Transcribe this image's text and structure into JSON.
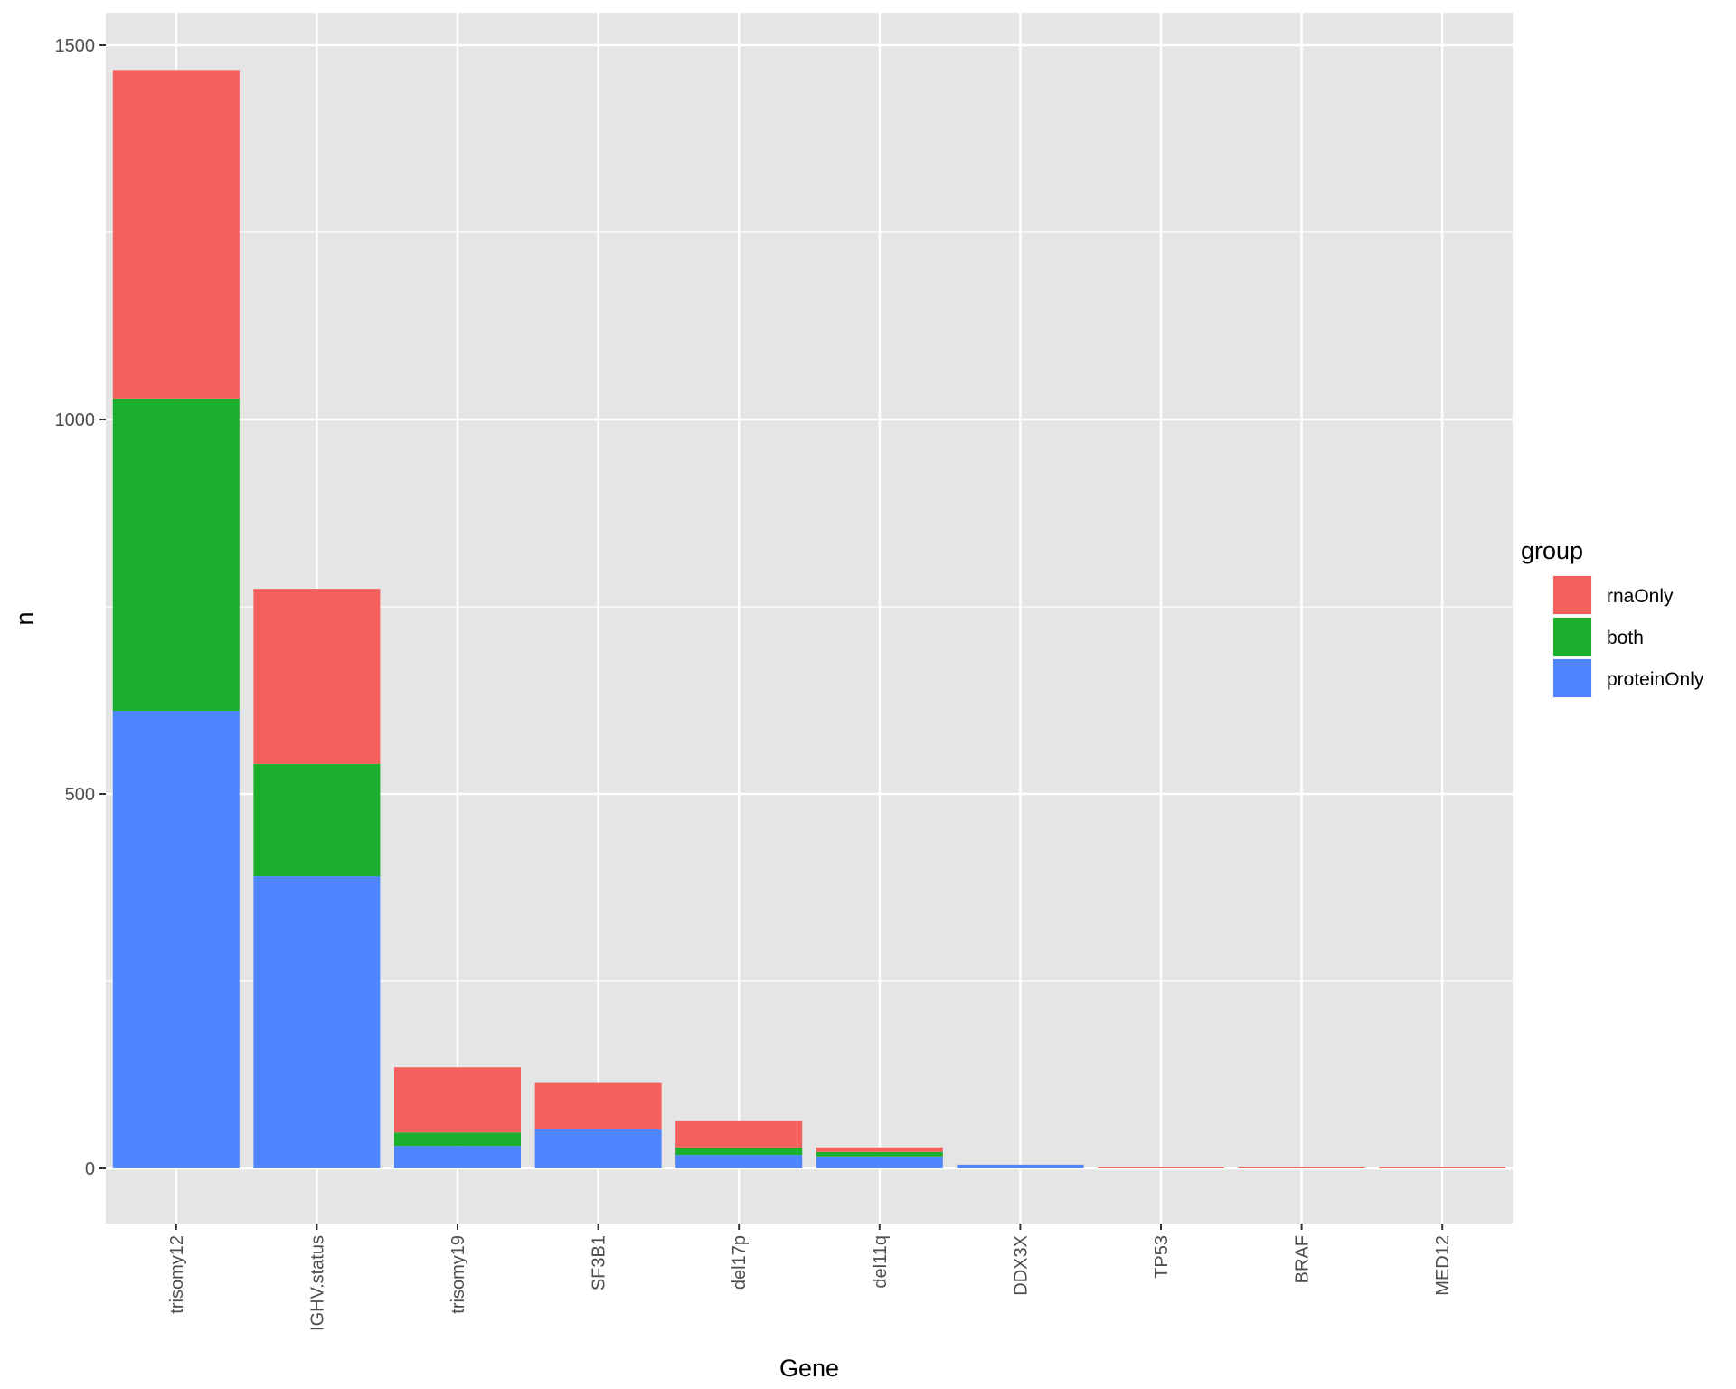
{
  "chart_data": {
    "type": "bar",
    "stacked": true,
    "title": "",
    "xlabel": "Gene",
    "ylabel": "n",
    "ylim": [
      -70,
      1540
    ],
    "yticks": [
      0,
      500,
      1000,
      1500
    ],
    "categories": [
      "trisomy12",
      "IGHV.status",
      "trisomy19",
      "SF3B1",
      "del17p",
      "del11q",
      "DDX3X",
      "TP53",
      "BRAF",
      "MED12"
    ],
    "series": [
      {
        "name": "proteinOnly",
        "color": "#4f86ff",
        "values": [
          611,
          390,
          30,
          52,
          18,
          16,
          5,
          0,
          0,
          0
        ]
      },
      {
        "name": "both",
        "color": "#1aaf2c",
        "values": [
          417,
          150,
          18,
          0,
          10,
          6,
          0,
          0,
          0,
          0
        ]
      },
      {
        "name": "rnaOnly",
        "color": "#f4615c",
        "values": [
          439,
          234,
          87,
          62,
          35,
          6,
          0,
          2,
          2,
          2
        ]
      }
    ],
    "legend": {
      "title": "group",
      "position": "right",
      "order": [
        "rnaOnly",
        "both",
        "proteinOnly"
      ]
    },
    "grid": true,
    "panel_background": "#e5e5e5",
    "grid_color": "#ffffff"
  }
}
